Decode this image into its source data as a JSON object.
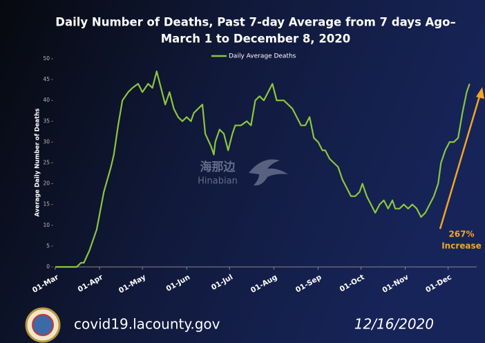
{
  "chart_data": {
    "type": "line",
    "title": "Daily Number of Deaths, Past 7-day Average from 7 days Ago–",
    "subtitle": "March 1 to December 8, 2020",
    "ylabel": "Average Daily Number of Deaths",
    "x": [
      0,
      5,
      10,
      15,
      18,
      20,
      24,
      29,
      34,
      39,
      41,
      44,
      47,
      51,
      54,
      58,
      61,
      65,
      68,
      71,
      74,
      77,
      80,
      83,
      86,
      89,
      92,
      95,
      97,
      100,
      103,
      105,
      109,
      111,
      112,
      115,
      118,
      121,
      124,
      126,
      130,
      134,
      137,
      140,
      143,
      146,
      149,
      152,
      155,
      157,
      160,
      163,
      166,
      169,
      172,
      175,
      178,
      181,
      184,
      187,
      189,
      192,
      195,
      198,
      201,
      204,
      207,
      210,
      213,
      215,
      218,
      221,
      224,
      227,
      230,
      233,
      236,
      238,
      241,
      244,
      247,
      250,
      253,
      256,
      259,
      262,
      265,
      268,
      270,
      273,
      276,
      279,
      282,
      285,
      288,
      290
    ],
    "series": [
      {
        "name": "Daily Average Deaths",
        "color": "#8dc63f",
        "values": [
          0,
          0,
          0,
          0,
          1,
          1,
          4,
          9,
          18,
          24,
          27,
          34,
          40,
          42,
          43,
          44,
          42,
          44,
          43,
          47,
          43,
          39,
          42,
          38,
          36,
          35,
          36,
          35,
          37,
          38,
          39,
          32,
          29,
          27,
          30,
          33,
          32,
          28,
          32,
          34,
          34,
          35,
          34,
          40,
          41,
          40,
          42,
          44,
          40,
          40,
          40,
          39,
          38,
          36,
          34,
          34,
          36,
          31,
          30,
          28,
          28,
          26,
          25,
          24,
          21,
          19,
          17,
          17,
          18,
          20,
          17,
          15,
          13,
          15,
          16,
          14,
          16,
          14,
          14,
          15,
          14,
          15,
          14,
          12,
          13,
          15,
          17,
          20,
          25,
          28,
          30,
          30,
          31,
          37,
          42,
          44
        ]
      }
    ],
    "xlim": [
      0,
      295
    ],
    "xticks": [
      {
        "value": 0,
        "label": "01-Mar"
      },
      {
        "value": 31,
        "label": "01-Apr"
      },
      {
        "value": 61,
        "label": "01-May"
      },
      {
        "value": 92,
        "label": "01-Jun"
      },
      {
        "value": 122,
        "label": "01-Jul"
      },
      {
        "value": 153,
        "label": "01-Aug"
      },
      {
        "value": 184,
        "label": "01-Sep"
      },
      {
        "value": 214,
        "label": "01-Oct"
      },
      {
        "value": 245,
        "label": "01-Nov"
      },
      {
        "value": 275,
        "label": "01-Dec"
      }
    ],
    "ylim": [
      0,
      50
    ],
    "yticks": [
      0,
      5,
      10,
      15,
      20,
      25,
      30,
      35,
      40,
      45,
      50
    ],
    "annotation": {
      "line1": "267%",
      "line2": "Increase",
      "color": "#f5a623"
    },
    "watermark": {
      "text": "海那边",
      "subtext": "Hinabian"
    },
    "footer": {
      "website": "covid19.lacounty.gov",
      "date": "12/16/2020"
    }
  }
}
